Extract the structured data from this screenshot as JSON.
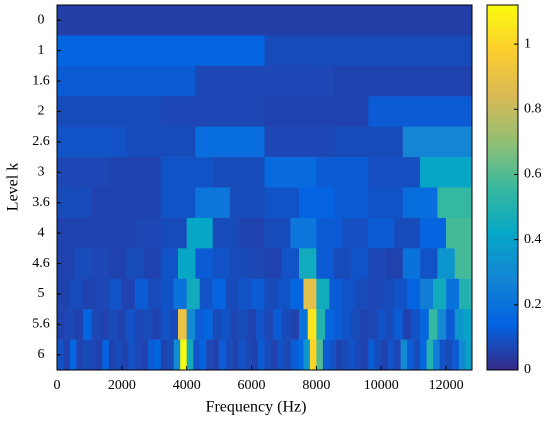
{
  "chart_data": {
    "type": "heatmap",
    "xlabel": "Frequency (Hz)",
    "ylabel": "Level k",
    "levels": [
      "0",
      "1",
      "1.6",
      "2",
      "2.6",
      "3",
      "3.6",
      "4",
      "4.6",
      "5",
      "5.6",
      "6"
    ],
    "values": [
      [
        0.05
      ],
      [
        0.15,
        0.08
      ],
      [
        0.12,
        0.07,
        0.06
      ],
      [
        0.08,
        0.07,
        0.06,
        0.12
      ],
      [
        0.1,
        0.08,
        0.18,
        0.07,
        0.08,
        0.28
      ],
      [
        0.07,
        0.06,
        0.1,
        0.08,
        0.17,
        0.12,
        0.09,
        0.42
      ],
      [
        0.08,
        0.06,
        0.06,
        0.1,
        0.22,
        0.08,
        0.1,
        0.14,
        0.12,
        0.1,
        0.18,
        0.55
      ],
      [
        0.06,
        0.06,
        0.06,
        0.07,
        0.08,
        0.42,
        0.08,
        0.06,
        0.08,
        0.22,
        0.12,
        0.09,
        0.12,
        0.08,
        0.15,
        0.58
      ],
      [
        0.06,
        0.08,
        0.07,
        0.06,
        0.08,
        0.06,
        0.1,
        0.42,
        0.12,
        0.1,
        0.08,
        0.07,
        0.06,
        0.1,
        0.45,
        0.12,
        0.08,
        0.1,
        0.07,
        0.06,
        0.2,
        0.1,
        0.35,
        0.58
      ],
      [
        0.06,
        0.08,
        0.06,
        0.07,
        0.1,
        0.06,
        0.12,
        0.08,
        0.1,
        0.2,
        0.45,
        0.1,
        0.14,
        0.08,
        0.1,
        0.12,
        0.08,
        0.1,
        0.15,
        0.88,
        0.45,
        0.12,
        0.1,
        0.08,
        0.07,
        0.08,
        0.1,
        0.14,
        0.25,
        0.45,
        0.2,
        0.5
      ],
      [
        0.06,
        0.07,
        0.06,
        0.15,
        0.07,
        0.06,
        0.08,
        0.06,
        0.1,
        0.07,
        0.08,
        0.06,
        0.1,
        0.08,
        0.9,
        0.3,
        0.12,
        0.15,
        0.08,
        0.1,
        0.07,
        0.08,
        0.06,
        0.1,
        0.07,
        0.12,
        0.08,
        0.06,
        0.2,
        1.05,
        0.5,
        0.15,
        0.12,
        0.1,
        0.08,
        0.06,
        0.07,
        0.1,
        0.08,
        0.12,
        0.06,
        0.1,
        0.15,
        0.55,
        0.3,
        0.12,
        0.35,
        0.4
      ],
      [
        0.1,
        0.06,
        0.15,
        0.06,
        0.08,
        0.07,
        0.06,
        0.14,
        0.06,
        0.08,
        0.06,
        0.1,
        0.07,
        0.06,
        0.12,
        0.15,
        0.06,
        0.08,
        0.3,
        1.12,
        0.45,
        0.1,
        0.14,
        0.07,
        0.06,
        0.12,
        0.08,
        0.06,
        0.1,
        0.07,
        0.06,
        0.12,
        0.08,
        0.06,
        0.1,
        0.07,
        0.12,
        0.15,
        0.35,
        1.0,
        0.6,
        0.12,
        0.1,
        0.06,
        0.08,
        0.1,
        0.07,
        0.06,
        0.12,
        0.08,
        0.06,
        0.1,
        0.07,
        0.3,
        0.12,
        0.08,
        0.15,
        0.5,
        0.25,
        0.1,
        0.08,
        0.12,
        0.3,
        0.4
      ]
    ],
    "xlim": [
      0,
      12800
    ],
    "xticks": [
      0,
      2000,
      4000,
      6000,
      8000,
      10000,
      12000
    ],
    "clim": [
      0,
      1.12
    ],
    "cticks": [
      0,
      0.2,
      0.4,
      0.6,
      0.8,
      1
    ],
    "colormap": "parula"
  }
}
